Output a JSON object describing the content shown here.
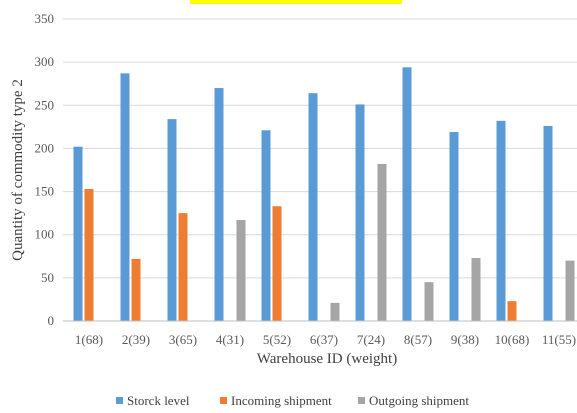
{
  "chart_data": {
    "type": "bar",
    "title": "",
    "xlabel": "Warehouse ID (weight)",
    "ylabel": "Quantity of commodity type 2",
    "ylim": [
      0,
      350
    ],
    "yticks": [
      0,
      50,
      100,
      150,
      200,
      250,
      300,
      350
    ],
    "grid": true,
    "legend_position": "bottom",
    "categories": [
      "1(68)",
      "2(39)",
      "3(65)",
      "4(31)",
      "5(52)",
      "6(37)",
      "7(24)",
      "8(57)",
      "9(38)",
      "10(68)",
      "11(55)"
    ],
    "series": [
      {
        "name": "Storck level",
        "color": "#5b9bd5",
        "values": [
          202,
          287,
          234,
          270,
          221,
          264,
          251,
          294,
          219,
          232,
          226
        ]
      },
      {
        "name": "Incoming shipment",
        "color": "#ed7d31",
        "values": [
          153,
          72,
          125,
          0,
          133,
          0,
          0,
          0,
          0,
          23,
          0
        ]
      },
      {
        "name": "Outgoing shipment",
        "color": "#a5a5a5",
        "values": [
          0,
          0,
          0,
          117,
          0,
          21,
          182,
          45,
          73,
          0,
          70
        ]
      }
    ]
  }
}
